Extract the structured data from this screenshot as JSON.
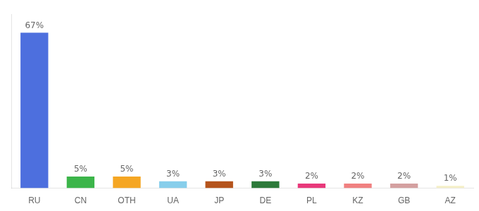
{
  "chart_data": {
    "type": "bar",
    "categories": [
      "RU",
      "CN",
      "OTH",
      "UA",
      "JP",
      "DE",
      "PL",
      "KZ",
      "GB",
      "AZ"
    ],
    "values": [
      67,
      5,
      5,
      3,
      3,
      3,
      2,
      2,
      2,
      1
    ],
    "value_labels": [
      "67%",
      "5%",
      "5%",
      "3%",
      "3%",
      "3%",
      "2%",
      "2%",
      "2%",
      "1%"
    ],
    "colors": [
      "#4d6fde",
      "#3cb54a",
      "#f5a623",
      "#87ceeb",
      "#b5541c",
      "#2d7a3a",
      "#e8387a",
      "#f08080",
      "#d4a0a0",
      "#f5f0c8"
    ],
    "ylim": [
      0,
      75
    ],
    "grid": false,
    "data_labels": true,
    "tick_labels": "x"
  }
}
